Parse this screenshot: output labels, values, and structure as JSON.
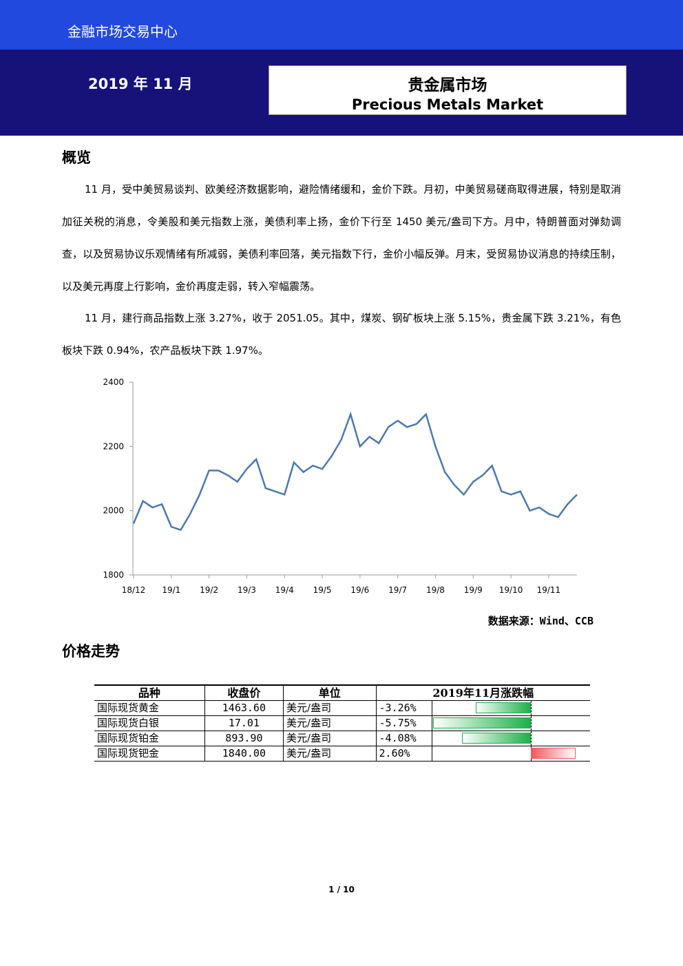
{
  "header": {
    "org": "金融市场交易中心",
    "date": "2019 年 11 月",
    "title_cn": "贵金属市场",
    "title_en": "Precious Metals Market"
  },
  "sections": [
    {
      "heading": "概览",
      "paragraphs": [
        "11 月，受中美贸易谈判、欧美经济数据影响，避险情绪缓和，金价下跌。月初，中美贸易磋商取得进展，特别是取消加征关税的消息，令美股和美元指数上涨，美债利率上扬，金价下行至 1450 美元/盎司下方。月中，特朗普面对弹劾调查，以及贸易协议乐观情绪有所减弱，美债利率回落，美元指数下行，金价小幅反弹。月末，受贸易协议消息的持续压制，以及美元再度上行影响，金价再度走弱，转入窄幅震荡。",
        "11 月，建行商品指数上涨 3.27%，收于 2051.05。其中，煤炭、钢矿板块上涨 5.15%，贵金属下跌 3.21%，有色板块下跌 0.94%，农产品板块下跌 1.97%。"
      ]
    },
    {
      "heading": "价格走势"
    }
  ],
  "chart_data": {
    "type": "line",
    "color": "#4a78b0",
    "categories": [
      "18/12",
      null,
      null,
      null,
      "19/1",
      null,
      null,
      null,
      "19/2",
      null,
      null,
      null,
      "19/3",
      null,
      null,
      null,
      "19/4",
      null,
      null,
      null,
      "19/5",
      null,
      null,
      null,
      "19/6",
      null,
      null,
      null,
      "19/7",
      null,
      null,
      null,
      "19/8",
      null,
      null,
      null,
      "19/9",
      null,
      null,
      null,
      "19/10",
      null,
      null,
      null,
      "19/11",
      null,
      null,
      null
    ],
    "values": [
      1960,
      2030,
      2010,
      2020,
      1950,
      1940,
      1990,
      2050,
      2125,
      2125,
      2110,
      2090,
      2130,
      2160,
      2070,
      2060,
      2050,
      2150,
      2120,
      2140,
      2130,
      2170,
      2220,
      2300,
      2200,
      2230,
      2210,
      2260,
      2280,
      2260,
      2270,
      2300,
      2200,
      2120,
      2080,
      2050,
      2090,
      2110,
      2140,
      2060,
      2050,
      2060,
      2000,
      2010,
      1990,
      1980,
      2020,
      2050
    ],
    "ylim": [
      1800,
      2400
    ],
    "yticks": [
      1800,
      2000,
      2200,
      2400
    ],
    "source": "数据来源：Wind、CCB"
  },
  "table": {
    "columns": [
      "品种",
      "收盘价",
      "单位",
      "2019年11月涨跌幅"
    ],
    "names": [
      "国际现货黄金",
      "国际现货白银",
      "国际现货铂金",
      "国际现货钯金"
    ],
    "close": [
      "1463.60",
      "17.01",
      "893.90",
      "1840.00"
    ],
    "units": [
      "美元/盎司",
      "美元/盎司",
      "美元/盎司",
      "美元/盎司"
    ],
    "values": [
      -3.26,
      -5.75,
      -4.08,
      2.6
    ],
    "value_labels": [
      "-3.26%",
      "-5.75%",
      "-4.08%",
      "2.60%"
    ]
  },
  "footer": {
    "page": "1 / 10"
  }
}
